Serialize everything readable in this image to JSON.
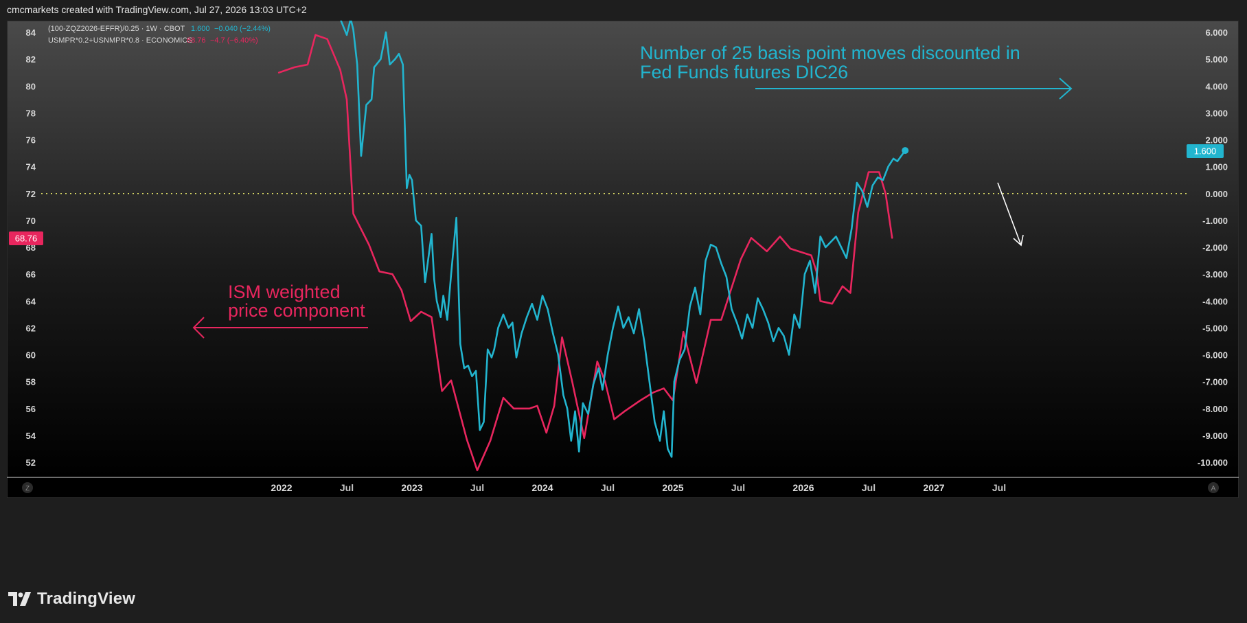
{
  "header": {
    "credit": "cmcmarkets created with TradingView.com, Jul 27, 2026 13:03 UTC+2"
  },
  "legend": [
    {
      "label": "(100-ZQZ2026-EFFR)/0.25 · 1W · CBOT",
      "value": "1.600",
      "change": "−0.040 (−2.44%)",
      "color": "#22b5cf"
    },
    {
      "label": "USMPR*0.2+USNMPR*0.8 · ECONOMICS",
      "value": "68.76",
      "change": "−4.7 (−6.40%)",
      "color": "#e8265e"
    }
  ],
  "annotations": {
    "fed_line1": "Number of 25 basis point moves discounted in",
    "fed_line2": "Fed Funds futures DIC26",
    "ism_line1": "ISM weighted",
    "ism_line2": "price component"
  },
  "badges": {
    "left_value": "68.76",
    "right_value": "1.600"
  },
  "axis_buttons": {
    "left": "Z",
    "right": "A"
  },
  "brand": {
    "name": "TradingView"
  },
  "colors": {
    "fed": "#22b5cf",
    "ism": "#e8265e",
    "zero_line": "#e6e66a"
  },
  "chart_data": {
    "type": "line",
    "x_axis": {
      "ticks": [
        {
          "label": "2022",
          "t": 2022.0,
          "bold": true
        },
        {
          "label": "Jul",
          "t": 2022.5,
          "bold": false
        },
        {
          "label": "2023",
          "t": 2023.0,
          "bold": true
        },
        {
          "label": "Jul",
          "t": 2023.5,
          "bold": false
        },
        {
          "label": "2024",
          "t": 2024.0,
          "bold": true
        },
        {
          "label": "Jul",
          "t": 2024.5,
          "bold": false
        },
        {
          "label": "2025",
          "t": 2025.0,
          "bold": true
        },
        {
          "label": "Jul",
          "t": 2025.5,
          "bold": false
        },
        {
          "label": "2026",
          "t": 2026.0,
          "bold": true
        },
        {
          "label": "Jul",
          "t": 2026.5,
          "bold": false
        },
        {
          "label": "2027",
          "t": 2027.0,
          "bold": true
        },
        {
          "label": "Jul",
          "t": 2027.5,
          "bold": false
        }
      ]
    },
    "left_axis": {
      "ticks": [
        "84",
        "82",
        "80",
        "78",
        "76",
        "74",
        "72",
        "70",
        "68",
        "66",
        "64",
        "62",
        "60",
        "58",
        "56",
        "54",
        "52"
      ]
    },
    "right_axis": {
      "ticks": [
        "6.000",
        "5.000",
        "4.000",
        "3.000",
        "2.000",
        "1.000",
        "0.000",
        "-1.000",
        "-2.000",
        "-3.000",
        "-4.000",
        "-5.000",
        "-6.000",
        "-7.000",
        "-8.000",
        "-9.000",
        "-10.000"
      ]
    },
    "zero_line": 0,
    "series": [
      {
        "name": "USMPR*0.2+USNMPR*0.8 · ECONOMICS",
        "axis": "left",
        "points": [
          [
            2021.98,
            81.0
          ],
          [
            2022.1,
            81.4
          ],
          [
            2022.2,
            81.6
          ],
          [
            2022.26,
            83.8
          ],
          [
            2022.35,
            83.5
          ],
          [
            2022.45,
            81.2
          ],
          [
            2022.5,
            79.0
          ],
          [
            2022.55,
            70.5
          ],
          [
            2022.67,
            68.2
          ],
          [
            2022.75,
            66.2
          ],
          [
            2022.85,
            66.0
          ],
          [
            2022.92,
            64.8
          ],
          [
            2022.99,
            62.5
          ],
          [
            2023.07,
            63.2
          ],
          [
            2023.15,
            62.8
          ],
          [
            2023.23,
            57.3
          ],
          [
            2023.3,
            58.1
          ],
          [
            2023.42,
            53.7
          ],
          [
            2023.5,
            51.4
          ],
          [
            2023.6,
            53.6
          ],
          [
            2023.7,
            56.8
          ],
          [
            2023.78,
            56.0
          ],
          [
            2023.9,
            56.0
          ],
          [
            2023.96,
            56.2
          ],
          [
            2024.03,
            54.2
          ],
          [
            2024.09,
            56.2
          ],
          [
            2024.15,
            61.3
          ],
          [
            2024.23,
            57.9
          ],
          [
            2024.32,
            53.8
          ],
          [
            2024.42,
            59.5
          ],
          [
            2024.48,
            58.0
          ],
          [
            2024.55,
            55.2
          ],
          [
            2024.63,
            55.8
          ],
          [
            2024.75,
            56.6
          ],
          [
            2024.85,
            57.2
          ],
          [
            2024.93,
            57.5
          ],
          [
            2025.0,
            56.6
          ],
          [
            2025.08,
            61.7
          ],
          [
            2025.18,
            57.9
          ],
          [
            2025.29,
            62.6
          ],
          [
            2025.37,
            62.6
          ],
          [
            2025.52,
            67.1
          ],
          [
            2025.6,
            68.7
          ],
          [
            2025.72,
            67.7
          ],
          [
            2025.82,
            68.8
          ],
          [
            2025.9,
            67.9
          ],
          [
            2026.06,
            67.4
          ],
          [
            2026.1,
            66.2
          ],
          [
            2026.13,
            64.0
          ],
          [
            2026.22,
            63.8
          ],
          [
            2026.3,
            65.1
          ],
          [
            2026.36,
            64.6
          ],
          [
            2026.42,
            70.6
          ],
          [
            2026.5,
            73.6
          ],
          [
            2026.58,
            73.6
          ],
          [
            2026.63,
            72.0
          ],
          [
            2026.68,
            68.7
          ]
        ]
      },
      {
        "name": "(100-ZQZ2026-EFFR)/0.25 · 1W · CBOT",
        "axis": "right",
        "points": [
          [
            2022.45,
            6.5
          ],
          [
            2022.5,
            5.9
          ],
          [
            2022.53,
            6.5
          ],
          [
            2022.55,
            6.1
          ],
          [
            2022.58,
            4.8
          ],
          [
            2022.61,
            1.4
          ],
          [
            2022.65,
            3.3
          ],
          [
            2022.69,
            3.5
          ],
          [
            2022.71,
            4.7
          ],
          [
            2022.76,
            5.0
          ],
          [
            2022.8,
            6.0
          ],
          [
            2022.83,
            4.8
          ],
          [
            2022.87,
            5.0
          ],
          [
            2022.9,
            5.2
          ],
          [
            2022.93,
            4.8
          ],
          [
            2022.96,
            0.2
          ],
          [
            2022.98,
            0.7
          ],
          [
            2023.0,
            0.5
          ],
          [
            2023.03,
            -1.0
          ],
          [
            2023.07,
            -1.2
          ],
          [
            2023.1,
            -3.3
          ],
          [
            2023.12,
            -2.6
          ],
          [
            2023.15,
            -1.5
          ],
          [
            2023.17,
            -3.2
          ],
          [
            2023.19,
            -4.0
          ],
          [
            2023.22,
            -4.6
          ],
          [
            2023.24,
            -3.8
          ],
          [
            2023.27,
            -4.7
          ],
          [
            2023.3,
            -3.0
          ],
          [
            2023.34,
            -0.9
          ],
          [
            2023.37,
            -5.6
          ],
          [
            2023.4,
            -6.5
          ],
          [
            2023.43,
            -6.4
          ],
          [
            2023.46,
            -6.8
          ],
          [
            2023.49,
            -6.6
          ],
          [
            2023.52,
            -8.8
          ],
          [
            2023.55,
            -8.5
          ],
          [
            2023.58,
            -5.8
          ],
          [
            2023.61,
            -6.1
          ],
          [
            2023.63,
            -5.8
          ],
          [
            2023.66,
            -5.0
          ],
          [
            2023.7,
            -4.5
          ],
          [
            2023.74,
            -5.0
          ],
          [
            2023.77,
            -4.8
          ],
          [
            2023.8,
            -6.1
          ],
          [
            2023.84,
            -5.2
          ],
          [
            2023.88,
            -4.6
          ],
          [
            2023.92,
            -4.1
          ],
          [
            2023.96,
            -4.7
          ],
          [
            2024.0,
            -3.8
          ],
          [
            2024.04,
            -4.3
          ],
          [
            2024.08,
            -5.2
          ],
          [
            2024.12,
            -6.0
          ],
          [
            2024.16,
            -7.5
          ],
          [
            2024.19,
            -8.0
          ],
          [
            2024.22,
            -9.2
          ],
          [
            2024.25,
            -8.1
          ],
          [
            2024.28,
            -9.6
          ],
          [
            2024.31,
            -7.8
          ],
          [
            2024.35,
            -8.2
          ],
          [
            2024.39,
            -7.1
          ],
          [
            2024.43,
            -6.5
          ],
          [
            2024.46,
            -7.3
          ],
          [
            2024.5,
            -6.0
          ],
          [
            2024.54,
            -5.0
          ],
          [
            2024.58,
            -4.2
          ],
          [
            2024.62,
            -5.0
          ],
          [
            2024.66,
            -4.6
          ],
          [
            2024.7,
            -5.2
          ],
          [
            2024.74,
            -4.3
          ],
          [
            2024.78,
            -5.5
          ],
          [
            2024.82,
            -7.0
          ],
          [
            2024.86,
            -8.5
          ],
          [
            2024.9,
            -9.2
          ],
          [
            2024.93,
            -8.1
          ],
          [
            2024.96,
            -9.5
          ],
          [
            2024.99,
            -9.8
          ],
          [
            2025.01,
            -7.0
          ],
          [
            2025.05,
            -6.2
          ],
          [
            2025.09,
            -5.8
          ],
          [
            2025.13,
            -4.2
          ],
          [
            2025.17,
            -3.5
          ],
          [
            2025.21,
            -4.5
          ],
          [
            2025.25,
            -2.5
          ],
          [
            2025.29,
            -1.9
          ],
          [
            2025.33,
            -2.0
          ],
          [
            2025.37,
            -2.6
          ],
          [
            2025.41,
            -3.1
          ],
          [
            2025.45,
            -4.3
          ],
          [
            2025.49,
            -4.8
          ],
          [
            2025.53,
            -5.4
          ],
          [
            2025.57,
            -4.5
          ],
          [
            2025.61,
            -5.0
          ],
          [
            2025.65,
            -3.9
          ],
          [
            2025.69,
            -4.3
          ],
          [
            2025.73,
            -4.8
          ],
          [
            2025.77,
            -5.5
          ],
          [
            2025.81,
            -5.0
          ],
          [
            2025.85,
            -5.3
          ],
          [
            2025.89,
            -6.0
          ],
          [
            2025.93,
            -4.5
          ],
          [
            2025.97,
            -5.0
          ],
          [
            2026.01,
            -3.0
          ],
          [
            2026.05,
            -2.5
          ],
          [
            2026.09,
            -3.7
          ],
          [
            2026.13,
            -1.6
          ],
          [
            2026.17,
            -2.0
          ],
          [
            2026.21,
            -1.8
          ],
          [
            2026.25,
            -1.6
          ],
          [
            2026.29,
            -2.0
          ],
          [
            2026.33,
            -2.4
          ],
          [
            2026.37,
            -1.3
          ],
          [
            2026.41,
            0.4
          ],
          [
            2026.45,
            0.1
          ],
          [
            2026.49,
            -0.5
          ],
          [
            2026.53,
            0.3
          ],
          [
            2026.57,
            0.6
          ],
          [
            2026.61,
            0.5
          ],
          [
            2026.65,
            1.0
          ],
          [
            2026.69,
            1.3
          ],
          [
            2026.72,
            1.2
          ],
          [
            2026.75,
            1.4
          ],
          [
            2026.78,
            1.6
          ]
        ]
      }
    ]
  }
}
